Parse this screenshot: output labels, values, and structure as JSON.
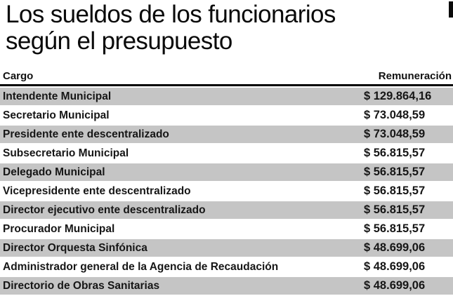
{
  "title": {
    "line1": "Los sueldos de los funcionarios",
    "line2": "según el presupuesto"
  },
  "chart_data": {
    "type": "table",
    "title": "Los sueldos de los funcionarios según el presupuesto",
    "columns": [
      "Cargo",
      "Remuneración"
    ],
    "rows": [
      {
        "cargo": "Intendente Municipal",
        "remuneracion": "$ 129.864,16"
      },
      {
        "cargo": "Secretario Municipal",
        "remuneracion": "$ 73.048,59"
      },
      {
        "cargo": "Presidente ente descentralizado",
        "remuneracion": "$ 73.048,59"
      },
      {
        "cargo": "Subsecretario Municipal",
        "remuneracion": "$ 56.815,57"
      },
      {
        "cargo": "Delegado Municipal",
        "remuneracion": "$ 56.815,57"
      },
      {
        "cargo": "Vicepresidente ente descentralizado",
        "remuneracion": "$ 56.815,57"
      },
      {
        "cargo": "Director ejecutivo ente descentralizado",
        "remuneracion": "$ 56.815,57"
      },
      {
        "cargo": "Procurador Municipal",
        "remuneracion": "$ 56.815,57"
      },
      {
        "cargo": "Director Orquesta Sinfónica",
        "remuneracion": "$ 48.699,06"
      },
      {
        "cargo": "Administrador general de la Agencia de Recaudación",
        "remuneracion": "$ 48.699,06"
      },
      {
        "cargo": "Directorio de Obras Sanitarias",
        "remuneracion": "$ 48.699,06",
        "truncated": true
      }
    ],
    "layout": {
      "striped": true,
      "first_row_striped": true,
      "stripe_color": "#c5c5c5",
      "header_rule_color": "#000000",
      "last_row_clipped_by_bottom_edge": true
    }
  },
  "colors": {
    "background": "#ffffff",
    "stripe": "#c5c5c5",
    "text": "#161616",
    "title_text": "#0a0a0a",
    "header_rule": "#000000"
  }
}
